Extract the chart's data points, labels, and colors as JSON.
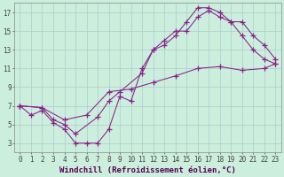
{
  "xlabel": "Windchill (Refroidissement éolien,°C)",
  "bg_color": "#cceedd",
  "grid_color": "#aacccc",
  "line_color": "#882288",
  "xlim_min": -0.5,
  "xlim_max": 23.5,
  "ylim_min": 2.0,
  "ylim_max": 18.0,
  "xticks": [
    0,
    1,
    2,
    3,
    4,
    5,
    6,
    7,
    8,
    9,
    10,
    11,
    12,
    13,
    14,
    15,
    16,
    17,
    18,
    19,
    20,
    21,
    22,
    23
  ],
  "yticks": [
    3,
    5,
    7,
    9,
    11,
    13,
    15,
    17
  ],
  "line1_x": [
    0,
    1,
    2,
    3,
    4,
    5,
    6,
    7,
    8,
    9,
    10,
    11,
    12,
    13,
    14,
    15,
    16,
    17,
    18,
    19,
    20,
    21,
    22,
    23
  ],
  "line1_y": [
    7.0,
    6.0,
    6.5,
    5.2,
    4.5,
    3.0,
    3.0,
    3.0,
    4.5,
    8.0,
    7.5,
    11.0,
    13.0,
    13.5,
    14.5,
    16.0,
    17.5,
    17.5,
    17.0,
    16.0,
    14.5,
    13.0,
    12.0,
    11.5
  ],
  "line2_x": [
    0,
    2,
    3,
    4,
    5,
    7,
    8,
    9,
    11,
    12,
    13,
    14,
    15,
    16,
    17,
    18,
    19,
    20,
    21,
    22,
    23
  ],
  "line2_y": [
    7.0,
    6.8,
    5.5,
    5.0,
    4.0,
    5.8,
    7.5,
    8.5,
    10.5,
    13.0,
    14.0,
    15.0,
    15.0,
    16.5,
    17.2,
    16.5,
    16.0,
    16.0,
    14.5,
    13.5,
    12.0
  ],
  "line3_x": [
    0,
    2,
    4,
    6,
    8,
    10,
    12,
    14,
    16,
    18,
    20,
    22,
    23
  ],
  "line3_y": [
    7.0,
    6.8,
    5.5,
    6.0,
    8.5,
    8.8,
    9.5,
    10.2,
    11.0,
    11.2,
    10.8,
    11.0,
    11.5
  ],
  "tick_fontsize": 5.5,
  "xlabel_fontsize": 6.5
}
